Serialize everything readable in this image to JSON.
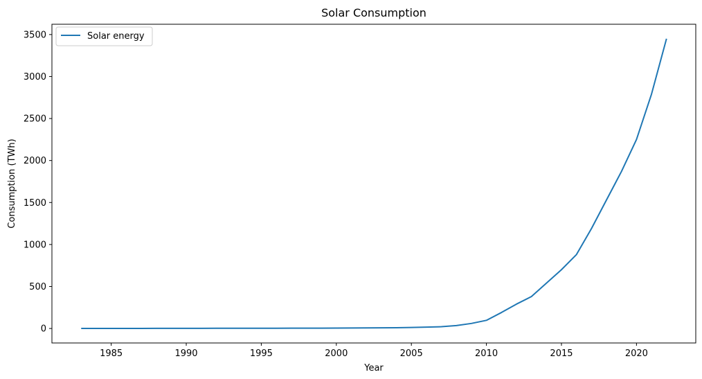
{
  "chart_data": {
    "type": "line",
    "title": "Solar Consumption",
    "xlabel": "Year",
    "ylabel": "Consumption (TWh)",
    "xlim": [
      1981.05,
      2023.95
    ],
    "ylim": [
      -172.5,
      3622.5
    ],
    "xticks": [
      1985,
      1990,
      1995,
      2000,
      2005,
      2010,
      2015,
      2020
    ],
    "yticks": [
      0,
      500,
      1000,
      1500,
      2000,
      2500,
      3000,
      3500
    ],
    "grid": false,
    "legend_position": "top-left",
    "series": [
      {
        "name": "Solar energy",
        "color": "#1f77b4",
        "x": [
          1983,
          1984,
          1985,
          1986,
          1987,
          1988,
          1989,
          1990,
          1991,
          1992,
          1993,
          1994,
          1995,
          1996,
          1997,
          1998,
          1999,
          2000,
          2001,
          2002,
          2003,
          2004,
          2005,
          2006,
          2007,
          2008,
          2009,
          2010,
          2011,
          2012,
          2013,
          2014,
          2015,
          2016,
          2017,
          2018,
          2019,
          2020,
          2021,
          2022
        ],
        "values": [
          0.5,
          0.7,
          0.9,
          1.0,
          1.1,
          1.3,
          1.6,
          1.9,
          2.2,
          2.4,
          2.6,
          2.8,
          3.0,
          3.2,
          3.5,
          3.8,
          4.2,
          4.8,
          5.5,
          6.5,
          7.6,
          9.4,
          12,
          16,
          21,
          35,
          60,
          97,
          190,
          290,
          380,
          540,
          700,
          880,
          1190,
          1530,
          1870,
          2250,
          2790,
          3450
        ]
      }
    ]
  }
}
